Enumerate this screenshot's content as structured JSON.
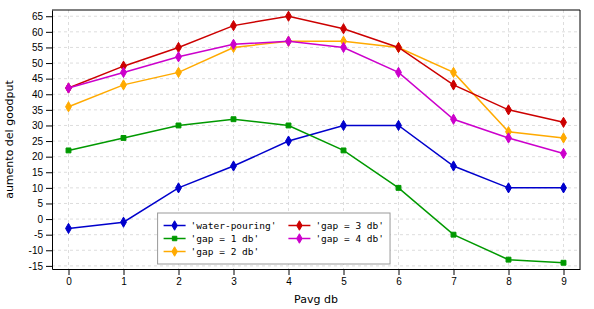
{
  "chart_data": {
    "type": "line",
    "x": [
      0,
      1,
      2,
      3,
      4,
      5,
      6,
      7,
      8,
      9
    ],
    "series": [
      {
        "name": "'water-pouring'",
        "color": "#0000cc",
        "marker": "diamond",
        "values": [
          -3,
          -1,
          10,
          17,
          25,
          30,
          30,
          17,
          10,
          10
        ]
      },
      {
        "name": "'gap = 1 db'",
        "color": "#009900",
        "marker": "square",
        "values": [
          22,
          26,
          30,
          32,
          30,
          22,
          10,
          -5,
          -13,
          -14
        ]
      },
      {
        "name": "'gap = 2 db'",
        "color": "#ffaa00",
        "marker": "diamond",
        "values": [
          36,
          43,
          47,
          55,
          57,
          57,
          55,
          47,
          28,
          26
        ]
      },
      {
        "name": "'gap = 3 db'",
        "color": "#cc0000",
        "marker": "diamond",
        "values": [
          42,
          49,
          55,
          62,
          65,
          61,
          55,
          43,
          35,
          31
        ]
      },
      {
        "name": "'gap = 4 db'",
        "color": "#cc00cc",
        "marker": "diamond",
        "values": [
          42,
          47,
          52,
          56,
          57,
          55,
          47,
          32,
          26,
          21
        ]
      }
    ],
    "xlabel": "Pavg db",
    "ylabel": "aumento del goodput",
    "xlim": [
      -0.3,
      9.3
    ],
    "ylim": [
      -16,
      67
    ],
    "xticks": [
      0,
      1,
      2,
      3,
      4,
      5,
      6,
      7,
      8,
      9
    ],
    "yticks": [
      -15,
      -10,
      -5,
      0,
      5,
      10,
      15,
      20,
      25,
      30,
      35,
      40,
      45,
      50,
      55,
      60,
      65
    ],
    "grid": true,
    "legend": "lower center"
  }
}
